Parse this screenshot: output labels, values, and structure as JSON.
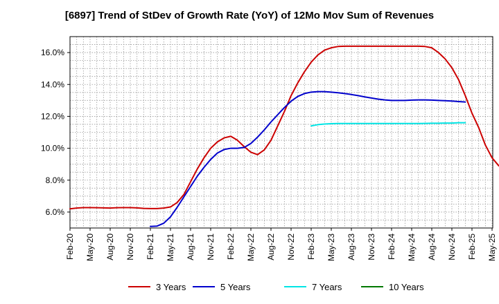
{
  "chart_data": {
    "type": "line",
    "title": "[6897]  Trend of StDev of Growth Rate (YoY) of 12Mo Mov Sum of Revenues",
    "xlabel": "",
    "ylabel": "",
    "ylim": [
      5.0,
      17.0
    ],
    "y_ticks": [
      6.0,
      8.0,
      10.0,
      12.0,
      14.0,
      16.0
    ],
    "y_tick_labels": [
      "6.0%",
      "8.0%",
      "10.0%",
      "12.0%",
      "14.0%",
      "16.0%"
    ],
    "x_tick_labels": [
      "Feb-20",
      "May-20",
      "Aug-20",
      "Nov-20",
      "Feb-21",
      "May-21",
      "Aug-21",
      "Nov-21",
      "Feb-22",
      "May-22",
      "Aug-22",
      "Nov-22",
      "Feb-23",
      "May-23",
      "Aug-23",
      "Nov-23",
      "Feb-24",
      "May-24",
      "Aug-24",
      "Nov-24",
      "Feb-25",
      "May-25"
    ],
    "x_start": "Feb-20",
    "grid": true,
    "legend_position": "bottom",
    "series": [
      {
        "name": "3 Years",
        "color": "#cc0000",
        "start_month_index": 0,
        "values": [
          6.2,
          6.25,
          6.28,
          6.28,
          6.27,
          6.26,
          6.25,
          6.27,
          6.28,
          6.28,
          6.26,
          6.23,
          6.22,
          6.22,
          6.25,
          6.32,
          6.6,
          7.1,
          7.9,
          8.7,
          9.4,
          10.0,
          10.4,
          10.65,
          10.75,
          10.5,
          10.1,
          9.75,
          9.6,
          9.9,
          10.5,
          11.4,
          12.3,
          13.3,
          14.1,
          14.8,
          15.4,
          15.85,
          16.15,
          16.3,
          16.38,
          16.4,
          16.4,
          16.4,
          16.4,
          16.4,
          16.4,
          16.4,
          16.4,
          16.4,
          16.4,
          16.4,
          16.4,
          16.38,
          16.3,
          16.0,
          15.6,
          15.05,
          14.3,
          13.3,
          12.2,
          11.3,
          10.2,
          9.4,
          8.9,
          8.75
        ]
      },
      {
        "name": "5 Years",
        "color": "#0000cc",
        "start_month_index": 12,
        "values": [
          5.1,
          5.12,
          5.3,
          5.7,
          6.3,
          6.95,
          7.6,
          8.25,
          8.8,
          9.3,
          9.7,
          9.92,
          10.0,
          10.0,
          10.05,
          10.3,
          10.7,
          11.15,
          11.65,
          12.1,
          12.55,
          12.95,
          13.25,
          13.43,
          13.52,
          13.55,
          13.55,
          13.52,
          13.48,
          13.43,
          13.37,
          13.3,
          13.22,
          13.15,
          13.08,
          13.03,
          13.0,
          13.0,
          13.0,
          13.02,
          13.03,
          13.03,
          13.02,
          13.0,
          12.98,
          12.96,
          12.93,
          12.9
        ]
      },
      {
        "name": "7 Years",
        "color": "#00e5e5",
        "start_month_index": 36,
        "values": [
          11.4,
          11.48,
          11.52,
          11.54,
          11.55,
          11.55,
          11.55,
          11.55,
          11.55,
          11.55,
          11.55,
          11.55,
          11.55,
          11.55,
          11.55,
          11.55,
          11.55,
          11.56,
          11.57,
          11.57,
          11.58,
          11.58,
          11.6,
          11.6
        ]
      },
      {
        "name": "10 Years",
        "color": "#007700",
        "start_month_index": 0,
        "values": []
      }
    ]
  }
}
